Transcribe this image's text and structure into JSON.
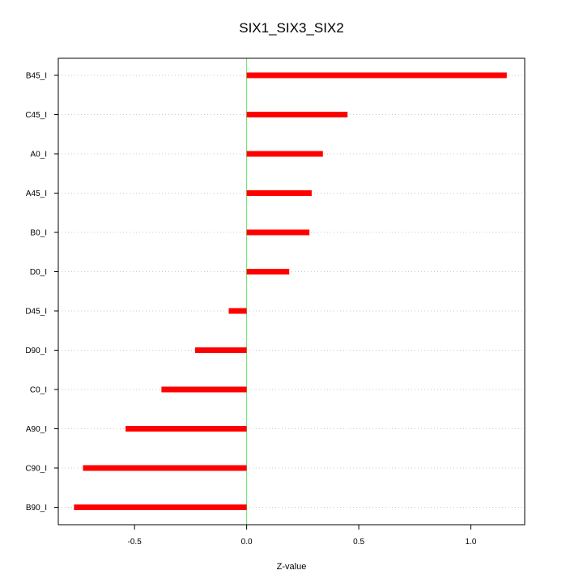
{
  "chart_data": {
    "type": "bar",
    "orientation": "horizontal",
    "title": "SIX1_SIX3_SIX2",
    "xlabel": "Z-value",
    "ylabel": "",
    "categories": [
      "B45_I",
      "C45_I",
      "A0_I",
      "A45_I",
      "B0_I",
      "D0_I",
      "D45_I",
      "D90_I",
      "C0_I",
      "A90_I",
      "C90_I",
      "B90_I"
    ],
    "values": [
      1.16,
      0.45,
      0.34,
      0.29,
      0.28,
      0.19,
      -0.08,
      -0.23,
      -0.38,
      -0.54,
      -0.73,
      -0.77
    ],
    "xlim": [
      -0.84,
      1.24
    ],
    "xticks": [
      -0.5,
      0.0,
      0.5,
      1.0
    ],
    "xtick_labels": [
      "-0.5",
      "0.0",
      "0.5",
      "1.0"
    ],
    "grid": "horizontal dotted",
    "colors": {
      "bar": "#ff0000",
      "zero_line": "#66dd66",
      "grid": "#c8c8c8",
      "axis": "#000000"
    }
  }
}
